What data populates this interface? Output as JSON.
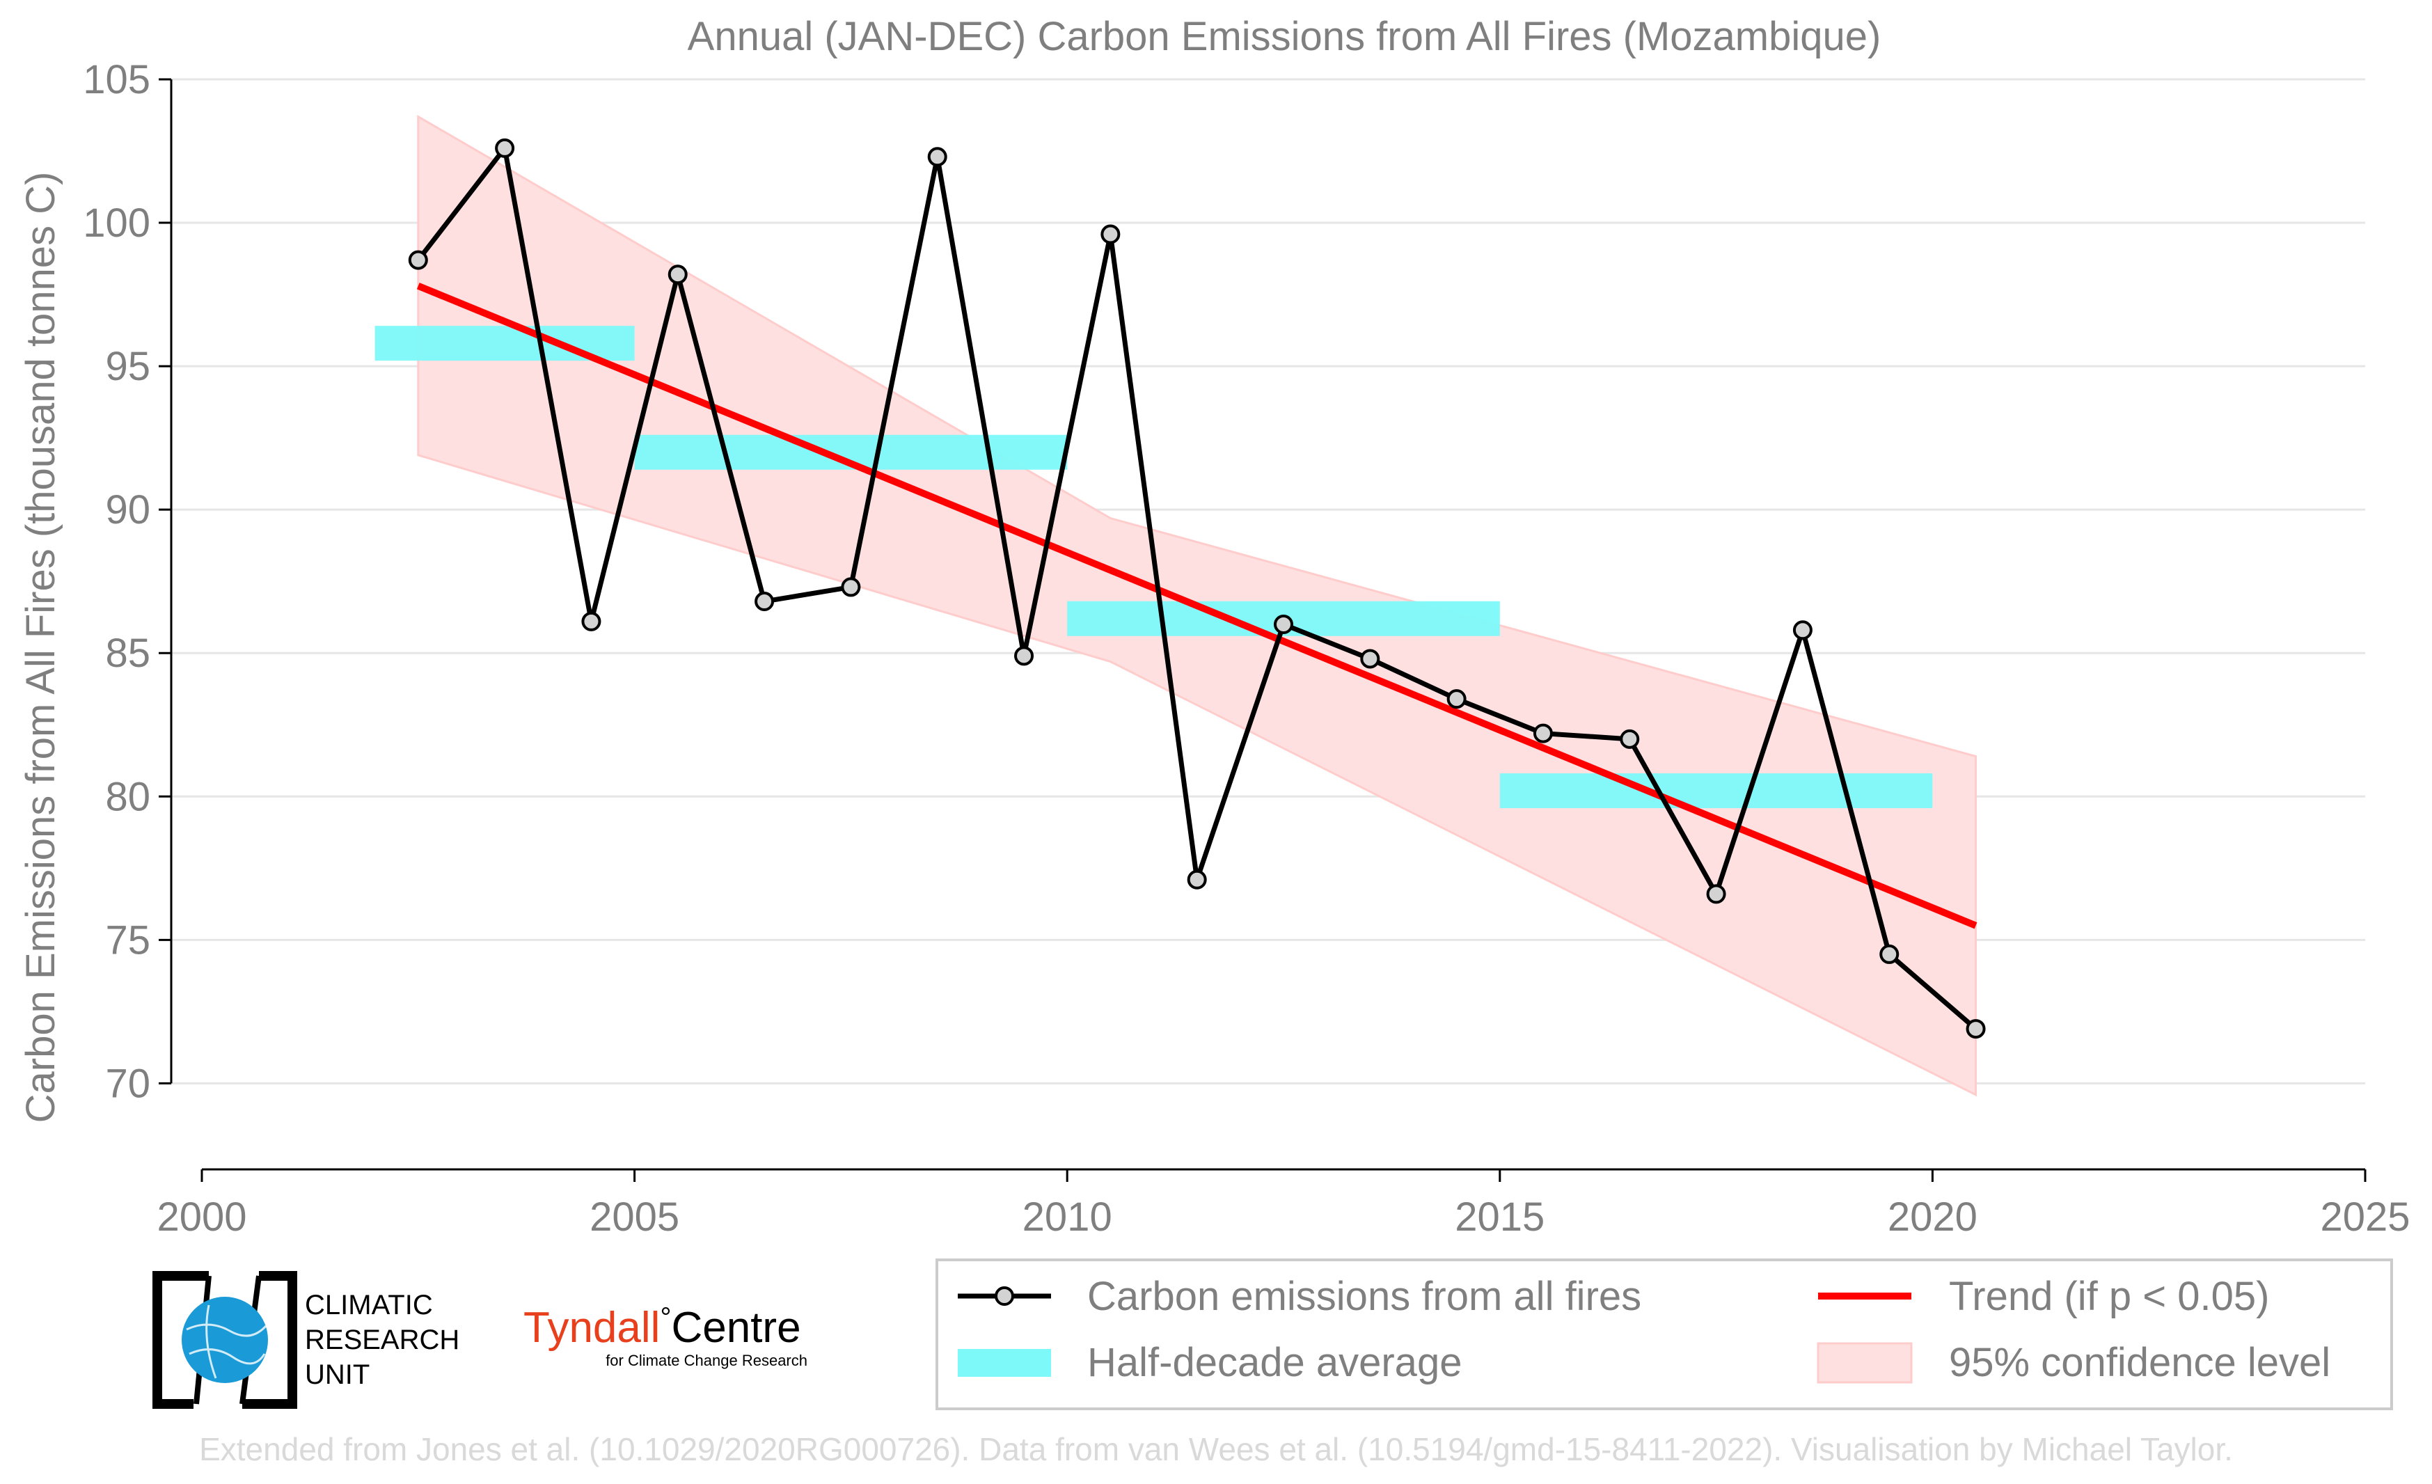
{
  "chart_data": {
    "type": "line",
    "title": "Annual (JAN-DEC) Carbon Emissions from All Fires (Mozambique)",
    "xlabel": "",
    "ylabel": "Carbon Emissions from All Fires (thousand tonnes C)",
    "xlim": [
      2000,
      2025
    ],
    "ylim": [
      67,
      105
    ],
    "x_ticks": [
      2000,
      2005,
      2010,
      2015,
      2020,
      2025
    ],
    "y_ticks": [
      70,
      75,
      80,
      85,
      90,
      95,
      100,
      105
    ],
    "grid": "horizontal",
    "legend_position": "bottom-right",
    "series": [
      {
        "name": "Carbon emissions from all fires",
        "kind": "line-markers",
        "color": "#000000",
        "marker_fill": "#d3d3d3",
        "x": [
          2002.5,
          2003.5,
          2004.5,
          2005.5,
          2006.5,
          2007.5,
          2008.5,
          2009.5,
          2010.5,
          2011.5,
          2012.5,
          2013.5,
          2014.5,
          2015.5,
          2016.5,
          2017.5,
          2018.5,
          2019.5,
          2020.5
        ],
        "y": [
          98.7,
          102.6,
          86.1,
          98.2,
          86.8,
          87.3,
          102.3,
          84.9,
          99.6,
          77.1,
          86.0,
          84.8,
          83.4,
          82.2,
          82.0,
          76.6,
          85.8,
          74.5,
          71.9
        ]
      },
      {
        "name": "Half-decade average",
        "kind": "bands",
        "color": "#7df9f9",
        "segments": [
          {
            "x0": 2002,
            "x1": 2005,
            "y": 95.8
          },
          {
            "x0": 2005,
            "x1": 2010,
            "y": 92.0
          },
          {
            "x0": 2010,
            "x1": 2015,
            "y": 86.2
          },
          {
            "x0": 2015,
            "x1": 2020,
            "y": 80.2
          }
        ]
      },
      {
        "name": "Trend (if p < 0.05)",
        "kind": "line",
        "color": "#ff0000",
        "x": [
          2002.5,
          2020.5
        ],
        "y": [
          97.8,
          75.5
        ]
      },
      {
        "name": "95% confidence level",
        "kind": "area",
        "color": "#ffe0e0",
        "edge_color": "#ffcccc",
        "x": [
          2002.5,
          2010.5,
          2020.5
        ],
        "upper": [
          103.7,
          89.7,
          81.4
        ],
        "lower": [
          91.9,
          84.7,
          69.6
        ]
      }
    ]
  },
  "logos": {
    "cru_line1": "CLIMATIC",
    "cru_line2": "RESEARCH",
    "cru_line3": "UNIT",
    "tyndall_name_a": "Tyndall",
    "tyndall_name_b": "Centre",
    "tyndall_sub": "for Climate Change Research"
  },
  "footer": "Extended from Jones et al. (10.1029/2020RG000726). Data from van Wees et al. (10.5194/gmd-15-8411-2022). Visualisation by Michael Taylor.",
  "colors": {
    "text_grey": "#7f7f7f",
    "grid": "#e6e6e6",
    "footer_grey": "#d9d9d9",
    "tyndall_red": "#e8401c",
    "cru_blue": "#1a9ad6"
  }
}
